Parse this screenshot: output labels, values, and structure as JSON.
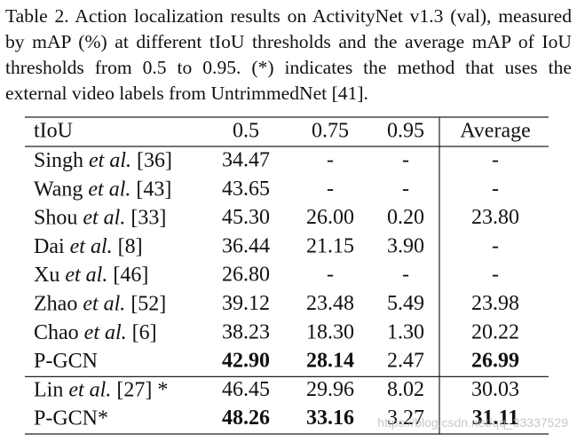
{
  "caption": "Table 2. Action localization results on ActivityNet v1.3 (val), measured by mAP (%) at different tIoU thresholds and the average mAP of IoU thresholds from 0.5 to 0.95. (*) indicates the method that uses the external video labels from UntrimmedNet [41].",
  "table": {
    "header": [
      "tIoU",
      "0.5",
      "0.75",
      "0.95",
      "Average"
    ],
    "groups": [
      [
        {
          "method": [
            "Singh",
            "et al.",
            "[36]"
          ],
          "cells": [
            "34.47",
            "-",
            "-",
            "-"
          ]
        },
        {
          "method": [
            "Wang",
            "et al.",
            "[43]"
          ],
          "cells": [
            "43.65",
            "-",
            "-",
            "-"
          ]
        },
        {
          "method": [
            "Shou",
            "et al.",
            "[33]"
          ],
          "cells": [
            "45.30",
            "26.00",
            "0.20",
            "23.80"
          ]
        },
        {
          "method": [
            "Dai",
            "et al.",
            "[8]"
          ],
          "cells": [
            "36.44",
            "21.15",
            "3.90",
            "-"
          ]
        },
        {
          "method": [
            "Xu",
            "et al.",
            "[46]"
          ],
          "cells": [
            "26.80",
            "-",
            "-",
            "-"
          ]
        },
        {
          "method": [
            "Zhao",
            "et al.",
            "[52]"
          ],
          "cells": [
            "39.12",
            "23.48",
            "5.49",
            "23.98"
          ]
        },
        {
          "method": [
            "Chao",
            "et al.",
            "[6]"
          ],
          "cells": [
            "38.23",
            "18.30",
            "1.30",
            "20.22"
          ]
        },
        {
          "method": [
            "P-GCN"
          ],
          "cells": [
            "42.90",
            "28.14",
            "2.47",
            "26.99"
          ],
          "bold": [
            0,
            1,
            3
          ]
        }
      ],
      [
        {
          "method": [
            "Lin",
            "et al.",
            "[27] *"
          ],
          "cells": [
            "46.45",
            "29.96",
            "8.02",
            "30.03"
          ]
        },
        {
          "method": [
            "P-GCN*"
          ],
          "cells": [
            "48.26",
            "33.16",
            "3.27",
            "31.11"
          ],
          "bold": [
            0,
            1,
            3
          ]
        }
      ]
    ]
  },
  "watermark": "https://blog.csdn.net/qq_33337529"
}
